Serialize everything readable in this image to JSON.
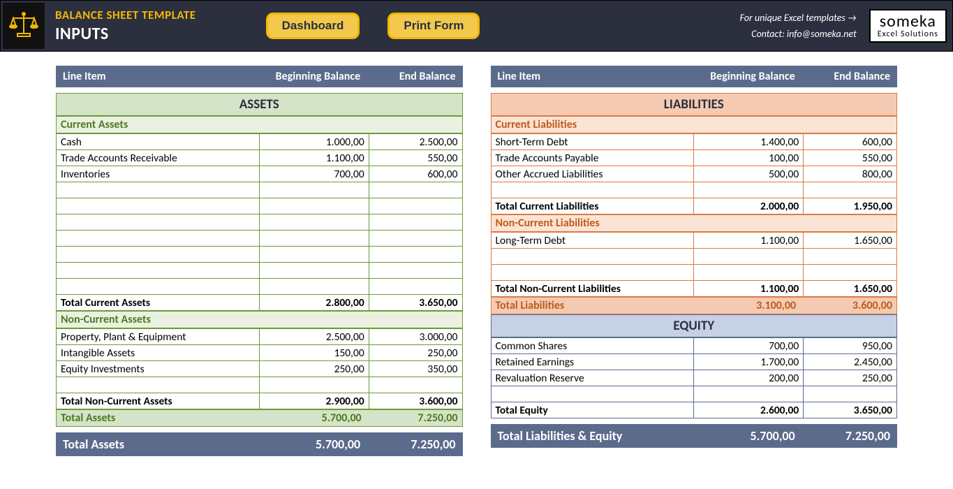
{
  "header": {
    "title": "BALANCE SHEET TEMPLATE",
    "subtitle": "INPUTS",
    "buttons": {
      "dashboard": "Dashboard",
      "printform": "Print Form"
    },
    "link_text": "For unique Excel templates →",
    "contact_text": "Contact: info@someka.net",
    "brand_main": "someka",
    "brand_sub": "Excel Solutions"
  },
  "columns": {
    "item": "Line Item",
    "beg": "Beginning Balance",
    "end": "End Balance"
  },
  "assets": {
    "title": "ASSETS",
    "current": {
      "label": "Current Assets",
      "rows": [
        {
          "name": "Cash",
          "beg": "1.000,00",
          "end": "2.500,00"
        },
        {
          "name": "Trade Accounts Receivable",
          "beg": "1.100,00",
          "end": "550,00"
        },
        {
          "name": "Inventories",
          "beg": "700,00",
          "end": "600,00"
        }
      ],
      "blank_rows": 7,
      "total": {
        "name": "Total Current Assets",
        "beg": "2.800,00",
        "end": "3.650,00"
      }
    },
    "noncurrent": {
      "label": "Non-Current Assets",
      "rows": [
        {
          "name": "Property, Plant & Equipment",
          "beg": "2.500,00",
          "end": "3.000,00"
        },
        {
          "name": "Intangible Assets",
          "beg": "150,00",
          "end": "250,00"
        },
        {
          "name": "Equity Investments",
          "beg": "250,00",
          "end": "350,00"
        }
      ],
      "blank_rows": 1,
      "total": {
        "name": "Total Non-Current Assets",
        "beg": "2.900,00",
        "end": "3.600,00"
      }
    },
    "grand": {
      "name": "Total Assets",
      "beg": "5.700,00",
      "end": "7.250,00"
    }
  },
  "liabilities": {
    "title": "LIABILITIES",
    "current": {
      "label": "Current Liabilities",
      "rows": [
        {
          "name": "Short-Term Debt",
          "beg": "1.400,00",
          "end": "600,00"
        },
        {
          "name": "Trade Accounts Payable",
          "beg": "100,00",
          "end": "550,00"
        },
        {
          "name": "Other Accrued Liabilities",
          "beg": "500,00",
          "end": "800,00"
        }
      ],
      "blank_rows": 1,
      "total": {
        "name": "Total Current Liabilities",
        "beg": "2.000,00",
        "end": "1.950,00"
      }
    },
    "noncurrent": {
      "label": "Non-Current Liabilities",
      "rows": [
        {
          "name": "Long-Term Debt",
          "beg": "1.100,00",
          "end": "1.650,00"
        }
      ],
      "blank_rows": 2,
      "total": {
        "name": "Total Non-Current Liabilities",
        "beg": "1.100,00",
        "end": "1.650,00"
      }
    },
    "grand": {
      "name": "Total Liabilities",
      "beg": "3.100,00",
      "end": "3.600,00"
    }
  },
  "equity": {
    "title": "EQUITY",
    "rows": [
      {
        "name": "Common Shares",
        "beg": "700,00",
        "end": "950,00"
      },
      {
        "name": "Retained Earnings",
        "beg": "1.700,00",
        "end": "2.450,00"
      },
      {
        "name": "Revaluation Reserve",
        "beg": "200,00",
        "end": "250,00"
      }
    ],
    "blank_rows": 1,
    "total": {
      "name": "Total Equity",
      "beg": "2.600,00",
      "end": "3.650,00"
    }
  },
  "footer": {
    "left": {
      "name": "Total Assets",
      "beg": "5.700,00",
      "end": "7.250,00"
    },
    "right": {
      "name": "Total Liabilities & Equity",
      "beg": "5.700,00",
      "end": "7.250,00"
    }
  },
  "colors": {
    "header_bg": "#2b2f3e",
    "accent_yellow": "#f2b705",
    "slate": "#5b6b8c",
    "green_dark": "#6b9b37",
    "green_light": "#d5e3c8",
    "green_vlight": "#eaf1e1",
    "green_text": "#4c7a1f",
    "orange_dark": "#d97b3f",
    "orange_light": "#f4cbb2",
    "orange_vlight": "#fbe4d5",
    "orange_text": "#c05a1a",
    "blue_light": "#c6d0e6"
  }
}
